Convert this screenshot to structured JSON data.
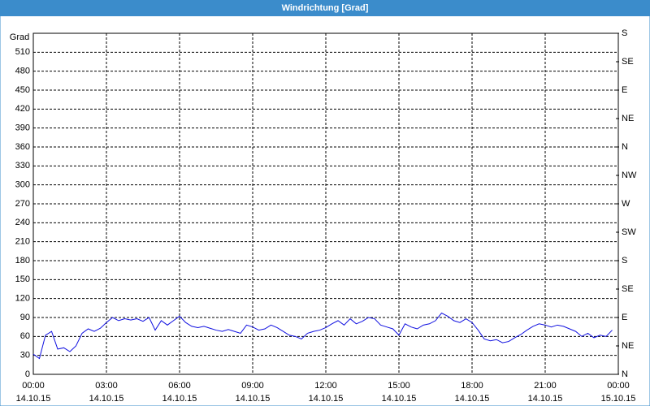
{
  "chart_data": {
    "type": "line",
    "title": "Windrichtung [Grad]",
    "y_label": "Grad",
    "x": [
      0,
      0.25,
      0.5,
      0.75,
      1,
      1.25,
      1.5,
      1.75,
      2,
      2.25,
      2.5,
      2.75,
      3,
      3.25,
      3.5,
      3.75,
      4,
      4.25,
      4.5,
      4.75,
      5,
      5.25,
      5.5,
      5.75,
      6,
      6.25,
      6.5,
      6.75,
      7,
      7.25,
      7.5,
      7.75,
      8,
      8.25,
      8.5,
      8.75,
      9,
      9.25,
      9.5,
      9.75,
      10,
      10.25,
      10.5,
      10.75,
      11,
      11.25,
      11.5,
      11.75,
      12,
      12.25,
      12.5,
      12.75,
      13,
      13.25,
      13.5,
      13.75,
      14,
      14.25,
      14.5,
      14.75,
      15,
      15.25,
      15.5,
      15.75,
      16,
      16.25,
      16.5,
      16.75,
      17,
      17.25,
      17.5,
      17.75,
      18,
      18.25,
      18.5,
      18.75,
      19,
      19.25,
      19.5,
      19.75,
      20,
      20.25,
      20.5,
      20.75,
      21,
      21.25,
      21.5,
      21.75,
      22,
      22.25,
      22.5,
      22.75,
      23,
      23.25,
      23.5,
      23.75
    ],
    "series": [
      {
        "name": "Windrichtung",
        "color": "#1010e0",
        "values": [
          32,
          25,
          62,
          68,
          40,
          42,
          36,
          45,
          65,
          72,
          68,
          73,
          82,
          90,
          85,
          88,
          86,
          88,
          84,
          90,
          70,
          85,
          78,
          85,
          92,
          82,
          76,
          74,
          76,
          73,
          70,
          68,
          71,
          68,
          65,
          78,
          75,
          70,
          72,
          78,
          74,
          68,
          62,
          60,
          56,
          65,
          68,
          70,
          74,
          80,
          85,
          78,
          88,
          80,
          84,
          90,
          88,
          78,
          75,
          72,
          62,
          80,
          75,
          72,
          78,
          80,
          85,
          97,
          92,
          85,
          82,
          88,
          82,
          70,
          56,
          53,
          55,
          50,
          52,
          58,
          63,
          70,
          76,
          80,
          78,
          75,
          78,
          76,
          72,
          68,
          60,
          65,
          58,
          62,
          60,
          70
        ]
      }
    ],
    "xlim": [
      0,
      24
    ],
    "xticks": [
      {
        "value": 0,
        "label": "00:00"
      },
      {
        "value": 3,
        "label": "03:00"
      },
      {
        "value": 6,
        "label": "06:00"
      },
      {
        "value": 9,
        "label": "09:00"
      },
      {
        "value": 12,
        "label": "12:00"
      },
      {
        "value": 15,
        "label": "15:00"
      },
      {
        "value": 18,
        "label": "18:00"
      },
      {
        "value": 21,
        "label": "21:00"
      },
      {
        "value": 24,
        "label": "00:00"
      }
    ],
    "xtick_dates": [
      "14.10.15",
      "14.10.15",
      "14.10.15",
      "14.10.15",
      "14.10.15",
      "14.10.15",
      "14.10.15",
      "14.10.15",
      "15.10.15"
    ],
    "ylim": [
      0,
      540
    ],
    "yticks": [
      0,
      30,
      60,
      90,
      120,
      150,
      180,
      210,
      240,
      270,
      300,
      330,
      360,
      390,
      420,
      450,
      480,
      510
    ],
    "y2lim": [
      0,
      540
    ],
    "y2ticks": [
      {
        "value": 0,
        "label": "N"
      },
      {
        "value": 45,
        "label": "NE"
      },
      {
        "value": 90,
        "label": "E"
      },
      {
        "value": 135,
        "label": "SE"
      },
      {
        "value": 180,
        "label": "S"
      },
      {
        "value": 225,
        "label": "SW"
      },
      {
        "value": 270,
        "label": "W"
      },
      {
        "value": 315,
        "label": "NW"
      },
      {
        "value": 360,
        "label": "N"
      },
      {
        "value": 405,
        "label": "NE"
      },
      {
        "value": 450,
        "label": "E"
      },
      {
        "value": 495,
        "label": "SE"
      },
      {
        "value": 540,
        "label": "S"
      }
    ],
    "grid": true
  }
}
